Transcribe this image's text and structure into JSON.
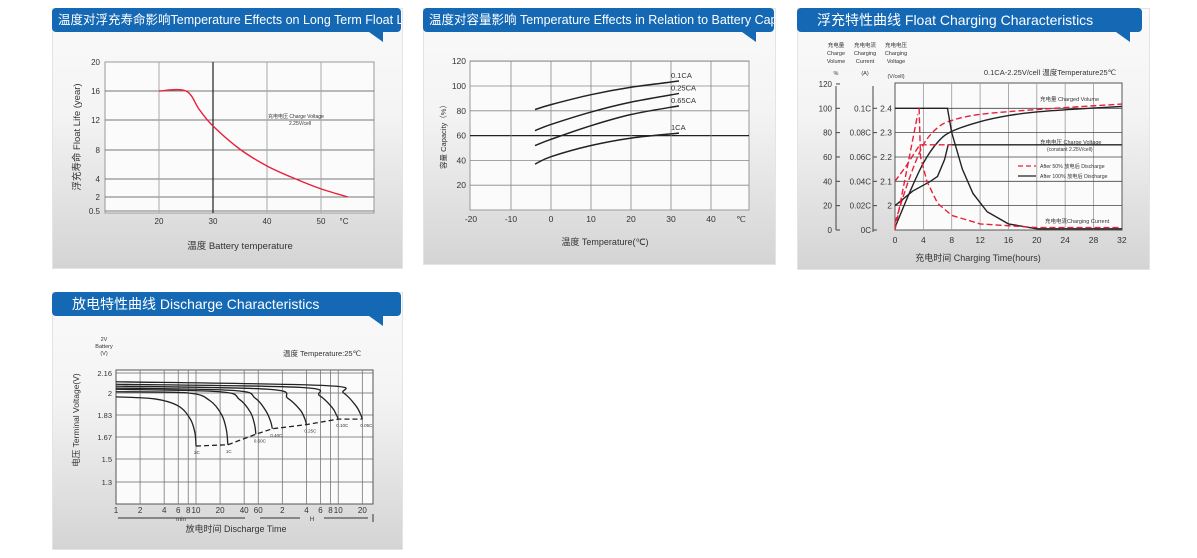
{
  "panels": [
    {
      "title": "温度对浮充寿命影响Temperature Effects on Long Term Float Life"
    },
    {
      "title": "温度对容量影响 Temperature Effects in Relation to Battery Capacity"
    },
    {
      "title": "浮充特性曲线 Float Charging Characteristics"
    },
    {
      "title": "放电特性曲线 Discharge Characteristics"
    }
  ],
  "colors": {
    "title_bar": "#1468b4",
    "red": "#e8203a",
    "dark": "#222222"
  },
  "chart_data": [
    {
      "type": "line",
      "title": "Temperature Effects on Long Term Float Life",
      "xlabel": "温度  Battery temperature",
      "ylabel": "浮充寿命  Float Life (year)",
      "x_unit": "°C",
      "xlim": [
        10,
        60
      ],
      "xticks": [
        20,
        30,
        40,
        50
      ],
      "yticks": [
        20,
        16,
        12,
        8,
        4,
        2,
        0.5
      ],
      "annotation": [
        "充电电压 Charge Voltage",
        "2.25V/cell"
      ],
      "series": [
        {
          "name": "Float life",
          "color": "#e8203a",
          "points": [
            [
              20,
              16
            ],
            [
              25,
              16
            ],
            [
              27.5,
              13.4
            ],
            [
              30,
              11.2
            ],
            [
              35,
              8.1
            ],
            [
              40,
              5.8
            ],
            [
              45,
              4.1
            ],
            [
              50,
              2.9
            ],
            [
              55,
              2.0
            ]
          ]
        }
      ]
    },
    {
      "type": "line",
      "title": "Temperature Effects in Relation to Battery Capacity",
      "xlabel": "温度  Temperature(℃)",
      "ylabel": "容量 Capacity（%）",
      "x_unit": "℃",
      "xlim": [
        -22,
        47
      ],
      "ylim": [
        0,
        120
      ],
      "xticks": [
        -20,
        -10,
        0,
        10,
        20,
        30,
        40
      ],
      "yticks": [
        20,
        40,
        60,
        80,
        100,
        120
      ],
      "series": [
        {
          "name": "0.1CA",
          "points": [
            [
              -4,
              81
            ],
            [
              0,
              85
            ],
            [
              10,
              93
            ],
            [
              20,
              99
            ],
            [
              32,
              104
            ]
          ]
        },
        {
          "name": "0.25CA",
          "points": [
            [
              -4,
              64
            ],
            [
              0,
              69
            ],
            [
              10,
              79
            ],
            [
              20,
              87
            ],
            [
              32,
              94
            ]
          ]
        },
        {
          "name": "0.65CA",
          "points": [
            [
              -4,
              52
            ],
            [
              0,
              57
            ],
            [
              10,
              68
            ],
            [
              20,
              77
            ],
            [
              32,
              84
            ]
          ]
        },
        {
          "name": "1CA",
          "points": [
            [
              -4,
              37
            ],
            [
              0,
              43
            ],
            [
              10,
              52
            ],
            [
              20,
              58
            ],
            [
              32,
              62
            ]
          ]
        }
      ]
    },
    {
      "type": "line",
      "title": "Float Charging Characteristics",
      "subtitle": "0.1CA-2.25V/cell   温度Temperature25℃",
      "xlabel": "充电时间 Charging Time(hours)",
      "axis_headers": [
        [
          "充电量",
          "Charge",
          "Volume",
          "%"
        ],
        [
          "充电电流",
          "Charging",
          "Current",
          "(A)"
        ],
        [
          "充电电压",
          "Charging",
          "Voltage",
          "(V/cell)"
        ]
      ],
      "xticks": [
        0,
        4,
        8,
        12,
        16,
        20,
        24,
        28,
        32
      ],
      "volume_ticks": [
        120,
        100,
        80,
        60,
        40,
        20,
        0
      ],
      "current_ticks": [
        "0.1C",
        "0.08C",
        "0.06C",
        "0.04C",
        "0.02C",
        "0C"
      ],
      "current_values": [
        0.1,
        0.08,
        0.06,
        0.04,
        0.02,
        0
      ],
      "voltage_ticks": [
        2.4,
        2.3,
        2.2,
        2.1,
        2.0
      ],
      "labels": {
        "volume": "充电量 Charged Volume",
        "voltage": "充电电压 Charge Voltage",
        "voltage_sub": "(constant 2.25V/cell)",
        "current": "充电电流Charging Current"
      },
      "legend": [
        {
          "name": "After 50%  放电后 Discharge",
          "style": "dashed",
          "color": "#e8203a"
        },
        {
          "name": "After 100%  放电后 Discharge",
          "style": "solid",
          "color": "#222222"
        }
      ],
      "series": [
        {
          "name": "volume-100",
          "unit": "%",
          "style": "solid",
          "points": [
            [
              0,
              2
            ],
            [
              2,
              30
            ],
            [
              4,
              55
            ],
            [
              6,
              72
            ],
            [
              8,
              81
            ],
            [
              12,
              89
            ],
            [
              16,
              94
            ],
            [
              20,
              97
            ],
            [
              26,
              99.5
            ],
            [
              32,
              101.5
            ]
          ]
        },
        {
          "name": "volume-50",
          "unit": "%",
          "style": "dashed",
          "points": [
            [
              0,
              6
            ],
            [
              2,
              42
            ],
            [
              4,
              70
            ],
            [
              6,
              84
            ],
            [
              8,
              90
            ],
            [
              12,
              95
            ],
            [
              20,
              99
            ],
            [
              32,
              103.5
            ]
          ]
        },
        {
          "name": "voltage-100",
          "unit": "V",
          "style": "solid",
          "points": [
            [
              0,
              2.0
            ],
            [
              2.5,
              2.06
            ],
            [
              5,
              2.1
            ],
            [
              6,
              2.12
            ],
            [
              7,
              2.19
            ],
            [
              7.5,
              2.25
            ],
            [
              32,
              2.25
            ]
          ]
        },
        {
          "name": "voltage-50",
          "unit": "V",
          "style": "dashed",
          "points": [
            [
              0,
              2.1
            ],
            [
              1.5,
              2.16
            ],
            [
              3.5,
              2.25
            ],
            [
              8,
              2.25
            ]
          ]
        },
        {
          "name": "current-100",
          "unit": "C",
          "style": "solid",
          "points": [
            [
              0,
              0.1
            ],
            [
              7.4,
              0.1
            ],
            [
              8,
              0.08
            ],
            [
              9.5,
              0.05
            ],
            [
              11,
              0.03
            ],
            [
              13,
              0.015
            ],
            [
              16,
              0.005
            ],
            [
              20,
              0.001
            ],
            [
              32,
              0.001
            ]
          ]
        },
        {
          "name": "current-50",
          "unit": "C",
          "style": "dashed",
          "points": [
            [
              3.4,
              0.1
            ],
            [
              3.6,
              0.06
            ],
            [
              4.5,
              0.04
            ],
            [
              6,
              0.022
            ],
            [
              8,
              0.012
            ],
            [
              12,
              0.005
            ],
            [
              20,
              0.002
            ],
            [
              32,
              0.002
            ]
          ]
        },
        {
          "name": "ramp-50",
          "unit": "C",
          "style": "dashed",
          "points": [
            [
              0,
              0
            ],
            [
              3.2,
              0.095
            ]
          ]
        }
      ]
    },
    {
      "type": "line",
      "title": "Discharge Characteristics",
      "header": [
        "2V",
        "Battery",
        "(V)"
      ],
      "subtitle": "温度 Temperature:25℃",
      "xlabel": "放电时间 Discharge Time",
      "ylabel": "电压 Terminal Voltage(V)",
      "yticks": [
        2.16,
        2.0,
        1.83,
        1.67,
        1.5,
        1.3
      ],
      "xticks": [
        {
          "label": "1",
          "min": 1
        },
        {
          "label": "2",
          "min": 2
        },
        {
          "label": "4",
          "min": 4
        },
        {
          "label": "6",
          "min": 6
        },
        {
          "label": "8",
          "min": 8
        },
        {
          "label": "10",
          "min": 10
        },
        {
          "label": "20",
          "min": 20
        },
        {
          "label": "40",
          "min": 40
        },
        {
          "label": "60",
          "min": 60
        },
        {
          "label": "2",
          "min": 120
        },
        {
          "label": "4",
          "min": 240
        },
        {
          "label": "6",
          "min": 360
        },
        {
          "label": "8",
          "min": 480
        },
        {
          "label": "10",
          "min": 600
        },
        {
          "label": "20",
          "min": 1200
        }
      ],
      "unit_labels": [
        "min",
        "H"
      ],
      "series": [
        {
          "name": "2C",
          "points": [
            [
              1,
              1.97
            ],
            [
              3,
              1.955
            ],
            [
              6,
              1.9
            ],
            [
              8.5,
              1.8
            ],
            [
              9.7,
              1.7
            ],
            [
              10,
              1.6
            ]
          ]
        },
        {
          "name": "1C",
          "points": [
            [
              1,
              2.01
            ],
            [
              8,
              2.0
            ],
            [
              15,
              1.94
            ],
            [
              21,
              1.83
            ],
            [
              24,
              1.72
            ],
            [
              25,
              1.61
            ]
          ]
        },
        {
          "name": "0.60C",
          "points": [
            [
              1,
              2.03
            ],
            [
              20,
              2.01
            ],
            [
              35,
              1.95
            ],
            [
              48,
              1.85
            ],
            [
              54,
              1.76
            ],
            [
              56,
              1.69
            ]
          ]
        },
        {
          "name": "0.40C",
          "points": [
            [
              1,
              2.04
            ],
            [
              30,
              2.02
            ],
            [
              55,
              1.96
            ],
            [
              75,
              1.86
            ],
            [
              86,
              1.78
            ],
            [
              90,
              1.73
            ]
          ]
        },
        {
          "name": "0.25C",
          "points": [
            [
              1,
              2.055
            ],
            [
              80,
              2.03
            ],
            [
              140,
              1.96
            ],
            [
              200,
              1.87
            ],
            [
              230,
              1.8
            ],
            [
              240,
              1.76
            ]
          ]
        },
        {
          "name": "0.10C",
          "points": [
            [
              1,
              2.07
            ],
            [
              200,
              2.045
            ],
            [
              350,
              1.98
            ],
            [
              500,
              1.89
            ],
            [
              570,
              1.83
            ],
            [
              600,
              1.8
            ]
          ]
        },
        {
          "name": "0.05C",
          "points": [
            [
              1,
              2.09
            ],
            [
              400,
              2.06
            ],
            [
              700,
              2.0
            ],
            [
              1000,
              1.9
            ],
            [
              1150,
              1.83
            ],
            [
              1200,
              1.8
            ]
          ]
        }
      ],
      "end_line": [
        [
          10,
          1.6
        ],
        [
          25,
          1.61
        ],
        [
          56,
          1.69
        ],
        [
          90,
          1.73
        ],
        [
          240,
          1.76
        ],
        [
          600,
          1.8
        ],
        [
          1200,
          1.8
        ]
      ]
    }
  ]
}
